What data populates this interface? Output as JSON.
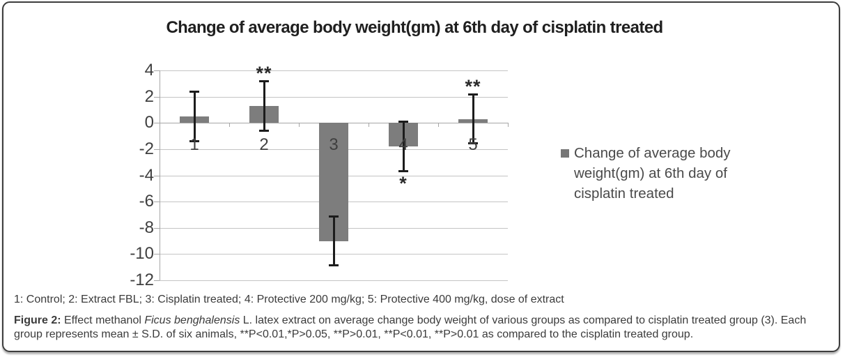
{
  "figure": {
    "group_key": "1: Control; 2: Extract FBL; 3: Cisplatin treated; 4: Protective 200 mg/kg; 5: Protective 400 mg/kg, dose of extract",
    "legend_text": "Change of   average body\nweight(gm) at 6th day of\ncisplatin treated",
    "caption_parts": [
      {
        "text": "Figure 2:",
        "bold": true
      },
      {
        "text": " Effect methanol "
      },
      {
        "text": "Ficus benghalensis",
        "italic": true
      },
      {
        "text": " L. latex extract on average change body weight of various groups as compared to cisplatin treated group (3). Each group represents mean ± S.D. of six animals, **P<0.01,*P>0.05, **P>0.01, **P<0.01, **P>0.01 as compared to the cisplatin treated group."
      }
    ]
  },
  "chart_data": {
    "type": "bar",
    "title": "Change of   average body weight(gm) at 6th day of cisplatin treated",
    "categories": [
      "1",
      "2",
      "3",
      "4",
      "5"
    ],
    "values": [
      0.5,
      1.3,
      -9.0,
      -1.8,
      0.3
    ],
    "errors": [
      1.9,
      1.9,
      1.9,
      1.9,
      1.9
    ],
    "significance": [
      "",
      "**",
      "",
      "*",
      "**"
    ],
    "significance_position": [
      "",
      "above",
      "",
      "below",
      "above"
    ],
    "ylim": [
      -12,
      4
    ],
    "ytick_step": 2,
    "ytick_labels": [
      "4",
      "2",
      "0",
      "-2",
      "-4",
      "-6",
      "-8",
      "-10",
      "-12"
    ],
    "xlabel": "",
    "ylabel": "",
    "grid": true,
    "legend": "Change of   average body weight(gm) at 6th day of cisplatin treated",
    "legend_position": "right",
    "bar_color": "#7d7d7d",
    "error_color": "#1c1c1c",
    "gridline_color": "#c4c4c4",
    "axis_color": "#a6a6a6",
    "text_color": "#3f3f3f"
  }
}
